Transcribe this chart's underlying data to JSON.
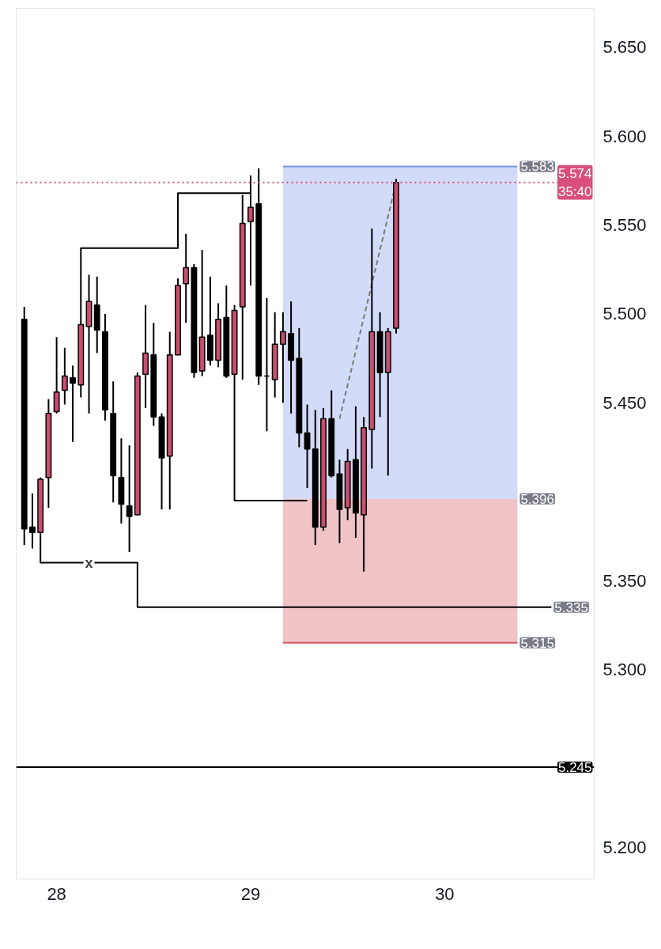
{
  "chart_data": {
    "type": "candlestick",
    "x": [
      27.8333,
      27.875,
      27.9167,
      27.9583,
      28,
      28.0417,
      28.0833,
      28.125,
      28.1667,
      28.2083,
      28.25,
      28.2917,
      28.3333,
      28.375,
      28.4167,
      28.4583,
      28.5,
      28.5417,
      28.5833,
      28.625,
      28.6667,
      28.7083,
      28.75,
      28.7917,
      28.8333,
      28.875,
      28.9167,
      28.9583,
      29,
      29.0417,
      29.0833,
      29.125,
      29.1667,
      29.2083,
      29.25,
      29.2917,
      29.3333,
      29.375,
      29.4167,
      29.4583,
      29.5,
      29.5417,
      29.5833,
      29.625,
      29.6667,
      29.7083,
      29.75
    ],
    "ohlc": [
      [
        5.497,
        5.504,
        5.37,
        5.379
      ],
      [
        5.38,
        5.399,
        5.368,
        5.377
      ],
      [
        5.377,
        5.408,
        5.377,
        5.407
      ],
      [
        5.408,
        5.452,
        5.391,
        5.444
      ],
      [
        5.445,
        5.487,
        5.444,
        5.456
      ],
      [
        5.457,
        5.481,
        5.449,
        5.465
      ],
      [
        5.464,
        5.471,
        5.428,
        5.461
      ],
      [
        5.46,
        5.535,
        5.453,
        5.494
      ],
      [
        5.493,
        5.522,
        5.444,
        5.507
      ],
      [
        5.505,
        5.521,
        5.478,
        5.491
      ],
      [
        5.49,
        5.5,
        5.44,
        5.446
      ],
      [
        5.444,
        5.462,
        5.394,
        5.409
      ],
      [
        5.408,
        5.43,
        5.382,
        5.393
      ],
      [
        5.392,
        5.426,
        5.366,
        5.386
      ],
      [
        5.387,
        5.467,
        5.387,
        5.465
      ],
      [
        5.466,
        5.505,
        5.447,
        5.478
      ],
      [
        5.477,
        5.495,
        5.437,
        5.442
      ],
      [
        5.442,
        5.444,
        5.39,
        5.419
      ],
      [
        5.42,
        5.49,
        5.39,
        5.477
      ],
      [
        5.477,
        5.52,
        5.477,
        5.516
      ],
      [
        5.517,
        5.545,
        5.495,
        5.526
      ],
      [
        5.526,
        5.528,
        5.464,
        5.467
      ],
      [
        5.468,
        5.536,
        5.465,
        5.487
      ],
      [
        5.488,
        5.521,
        5.471,
        5.474
      ],
      [
        5.474,
        5.506,
        5.47,
        5.497
      ],
      [
        5.498,
        5.516,
        5.464,
        5.465
      ],
      [
        5.466,
        5.505,
        5.466,
        5.502
      ],
      [
        5.504,
        5.567,
        5.463,
        5.551
      ],
      [
        5.552,
        5.578,
        5.516,
        5.56
      ],
      [
        5.562,
        5.582,
        5.46,
        5.465
      ],
      [
        5.465,
        5.509,
        5.434,
        5.465
      ],
      [
        5.463,
        5.501,
        5.453,
        5.483
      ],
      [
        5.483,
        5.501,
        5.45,
        5.49
      ],
      [
        5.489,
        5.507,
        5.444,
        5.474
      ],
      [
        5.475,
        5.492,
        5.425,
        5.433
      ],
      [
        5.433,
        5.449,
        5.402,
        5.424
      ],
      [
        5.424,
        5.446,
        5.37,
        5.38
      ],
      [
        5.38,
        5.447,
        5.378,
        5.441
      ],
      [
        5.441,
        5.457,
        5.408,
        5.409
      ],
      [
        5.41,
        5.418,
        5.371,
        5.39
      ],
      [
        5.391,
        5.424,
        5.384,
        5.417
      ],
      [
        5.418,
        5.448,
        5.374,
        5.388
      ],
      [
        5.387,
        5.442,
        5.355,
        5.436
      ],
      [
        5.435,
        5.548,
        5.413,
        5.49
      ],
      [
        5.49,
        5.501,
        5.442,
        5.467
      ],
      [
        5.467,
        5.492,
        5.409,
        5.49
      ],
      [
        5.492,
        5.576,
        5.489,
        5.574
      ]
    ],
    "colors": [
      "#000000",
      "#000000",
      "#c8506f",
      "#c8506f",
      "#c8506f",
      "#c8506f",
      "#000000",
      "#c8506f",
      "#c8506f",
      "#000000",
      "#000000",
      "#000000",
      "#000000",
      "#000000",
      "#c8506f",
      "#c8506f",
      "#000000",
      "#000000",
      "#c8506f",
      "#c8506f",
      "#c8506f",
      "#000000",
      "#c8506f",
      "#000000",
      "#c8506f",
      "#000000",
      "#c8506f",
      "#c8506f",
      "#c8506f",
      "#000000",
      "#000000",
      "#c8506f",
      "#c8506f",
      "#000000",
      "#000000",
      "#000000",
      "#000000",
      "#c8506f",
      "#000000",
      "#000000",
      "#c8506f",
      "#000000",
      "#c8506f",
      "#c8506f",
      "#000000",
      "#c8506f",
      "#c8506f"
    ],
    "series": [
      {
        "type": "line",
        "x": [
          29.1667,
          30.375
        ],
        "values": [
          5.583,
          5.583
        ],
        "lower": [
          5.396,
          5.396
        ],
        "upper": [
          5.583,
          5.583
        ],
        "color": "#7d97e8",
        "line_style": "solid"
      },
      {
        "type": "line",
        "x": [
          29.1667,
          30.375
        ],
        "values": [
          5.315,
          5.315
        ],
        "lower": [
          5.315,
          5.315
        ],
        "upper": [
          5.396,
          5.396
        ],
        "color": "#d4545e",
        "line_style": "solid"
      },
      {
        "type": "line",
        "x": [
          27.9167,
          27.9167,
          28.4167,
          28.4167,
          30.55
        ],
        "values": [
          5.377,
          5.36,
          5.36,
          5.335,
          5.335
        ],
        "color": "#000000",
        "line_style": "solid"
      },
      {
        "type": "line",
        "x": [
          28.125,
          28.125,
          28.625,
          28.625,
          29
        ],
        "values": [
          5.535,
          5.537,
          5.537,
          5.568,
          5.568
        ],
        "color": "#000000",
        "line_style": "solid"
      },
      {
        "type": "line",
        "x": [
          28.9167,
          28.9167,
          29.2917
        ],
        "values": [
          5.466,
          5.395,
          5.395
        ],
        "color": "#000000",
        "line_style": "solid"
      },
      {
        "type": "line",
        "x": [
          29.4583,
          29.75
        ],
        "values": [
          5.441,
          5.574
        ],
        "color": "#7a7a7a",
        "line_style": "dashed"
      }
    ],
    "ref_lines": [
      {
        "axis": "y",
        "value": 5.574,
        "label": "5.574\n35:40",
        "color": "#d94f7c",
        "line_style": "dotted"
      },
      {
        "axis": "y",
        "value": 5.245,
        "label": "5.245",
        "color": "#000000",
        "line_style": "solid"
      }
    ],
    "annotations": [
      {
        "text": "x",
        "x": 28.1667,
        "y": 5.36
      },
      {
        "text": "5.583",
        "x": 30.375,
        "y": 5.583
      },
      {
        "text": "5.396",
        "x": 30.375,
        "y": 5.396
      },
      {
        "text": "5.335",
        "x": 30.55,
        "y": 5.335
      },
      {
        "text": "5.315",
        "x": 30.375,
        "y": 5.315
      }
    ],
    "xlim": [
      27.7917,
      30.7708
    ],
    "ylim": [
      5.182,
      5.672
    ],
    "xticks": [
      28,
      29,
      30
    ],
    "yticks": [
      {
        "value": 5.2,
        "label": "5.200"
      },
      {
        "value": 5.3,
        "label": "5.300"
      },
      {
        "value": 5.35,
        "label": "5.350"
      },
      {
        "value": 5.45,
        "label": "5.450"
      },
      {
        "value": 5.5,
        "label": "5.500"
      },
      {
        "value": 5.55,
        "label": "5.550"
      },
      {
        "value": 5.6,
        "label": "5.600"
      },
      {
        "value": 5.65,
        "label": "5.650"
      }
    ],
    "grid": false
  }
}
